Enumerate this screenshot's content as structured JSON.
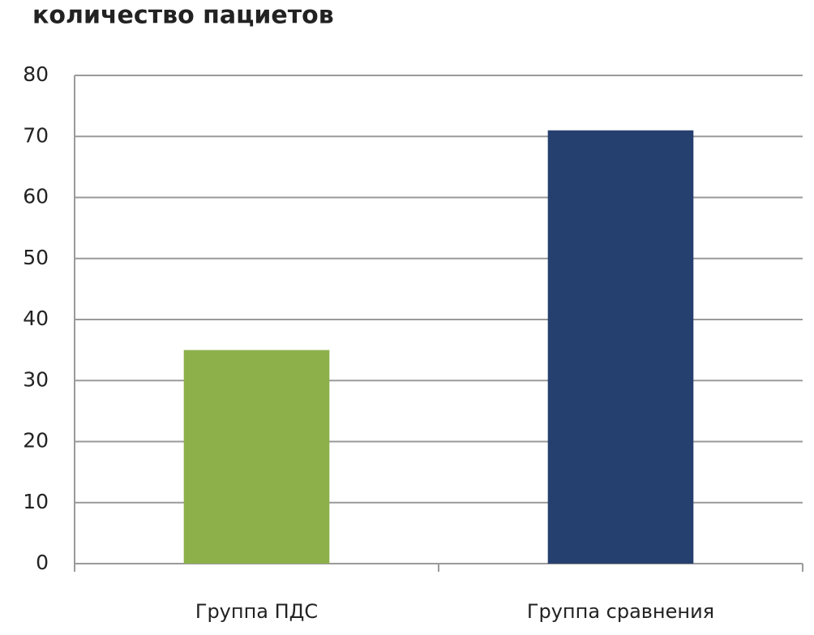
{
  "chart_data": {
    "type": "bar",
    "title": "количество пациетов",
    "categories": [
      "Группа ПДС",
      "Группа сравнения"
    ],
    "values": [
      35,
      71
    ],
    "colors": [
      "#8db04b",
      "#253f6e"
    ],
    "ylim": [
      0,
      80
    ],
    "yticks": [
      0,
      10,
      20,
      30,
      40,
      50,
      60,
      70,
      80
    ],
    "grid": true
  }
}
